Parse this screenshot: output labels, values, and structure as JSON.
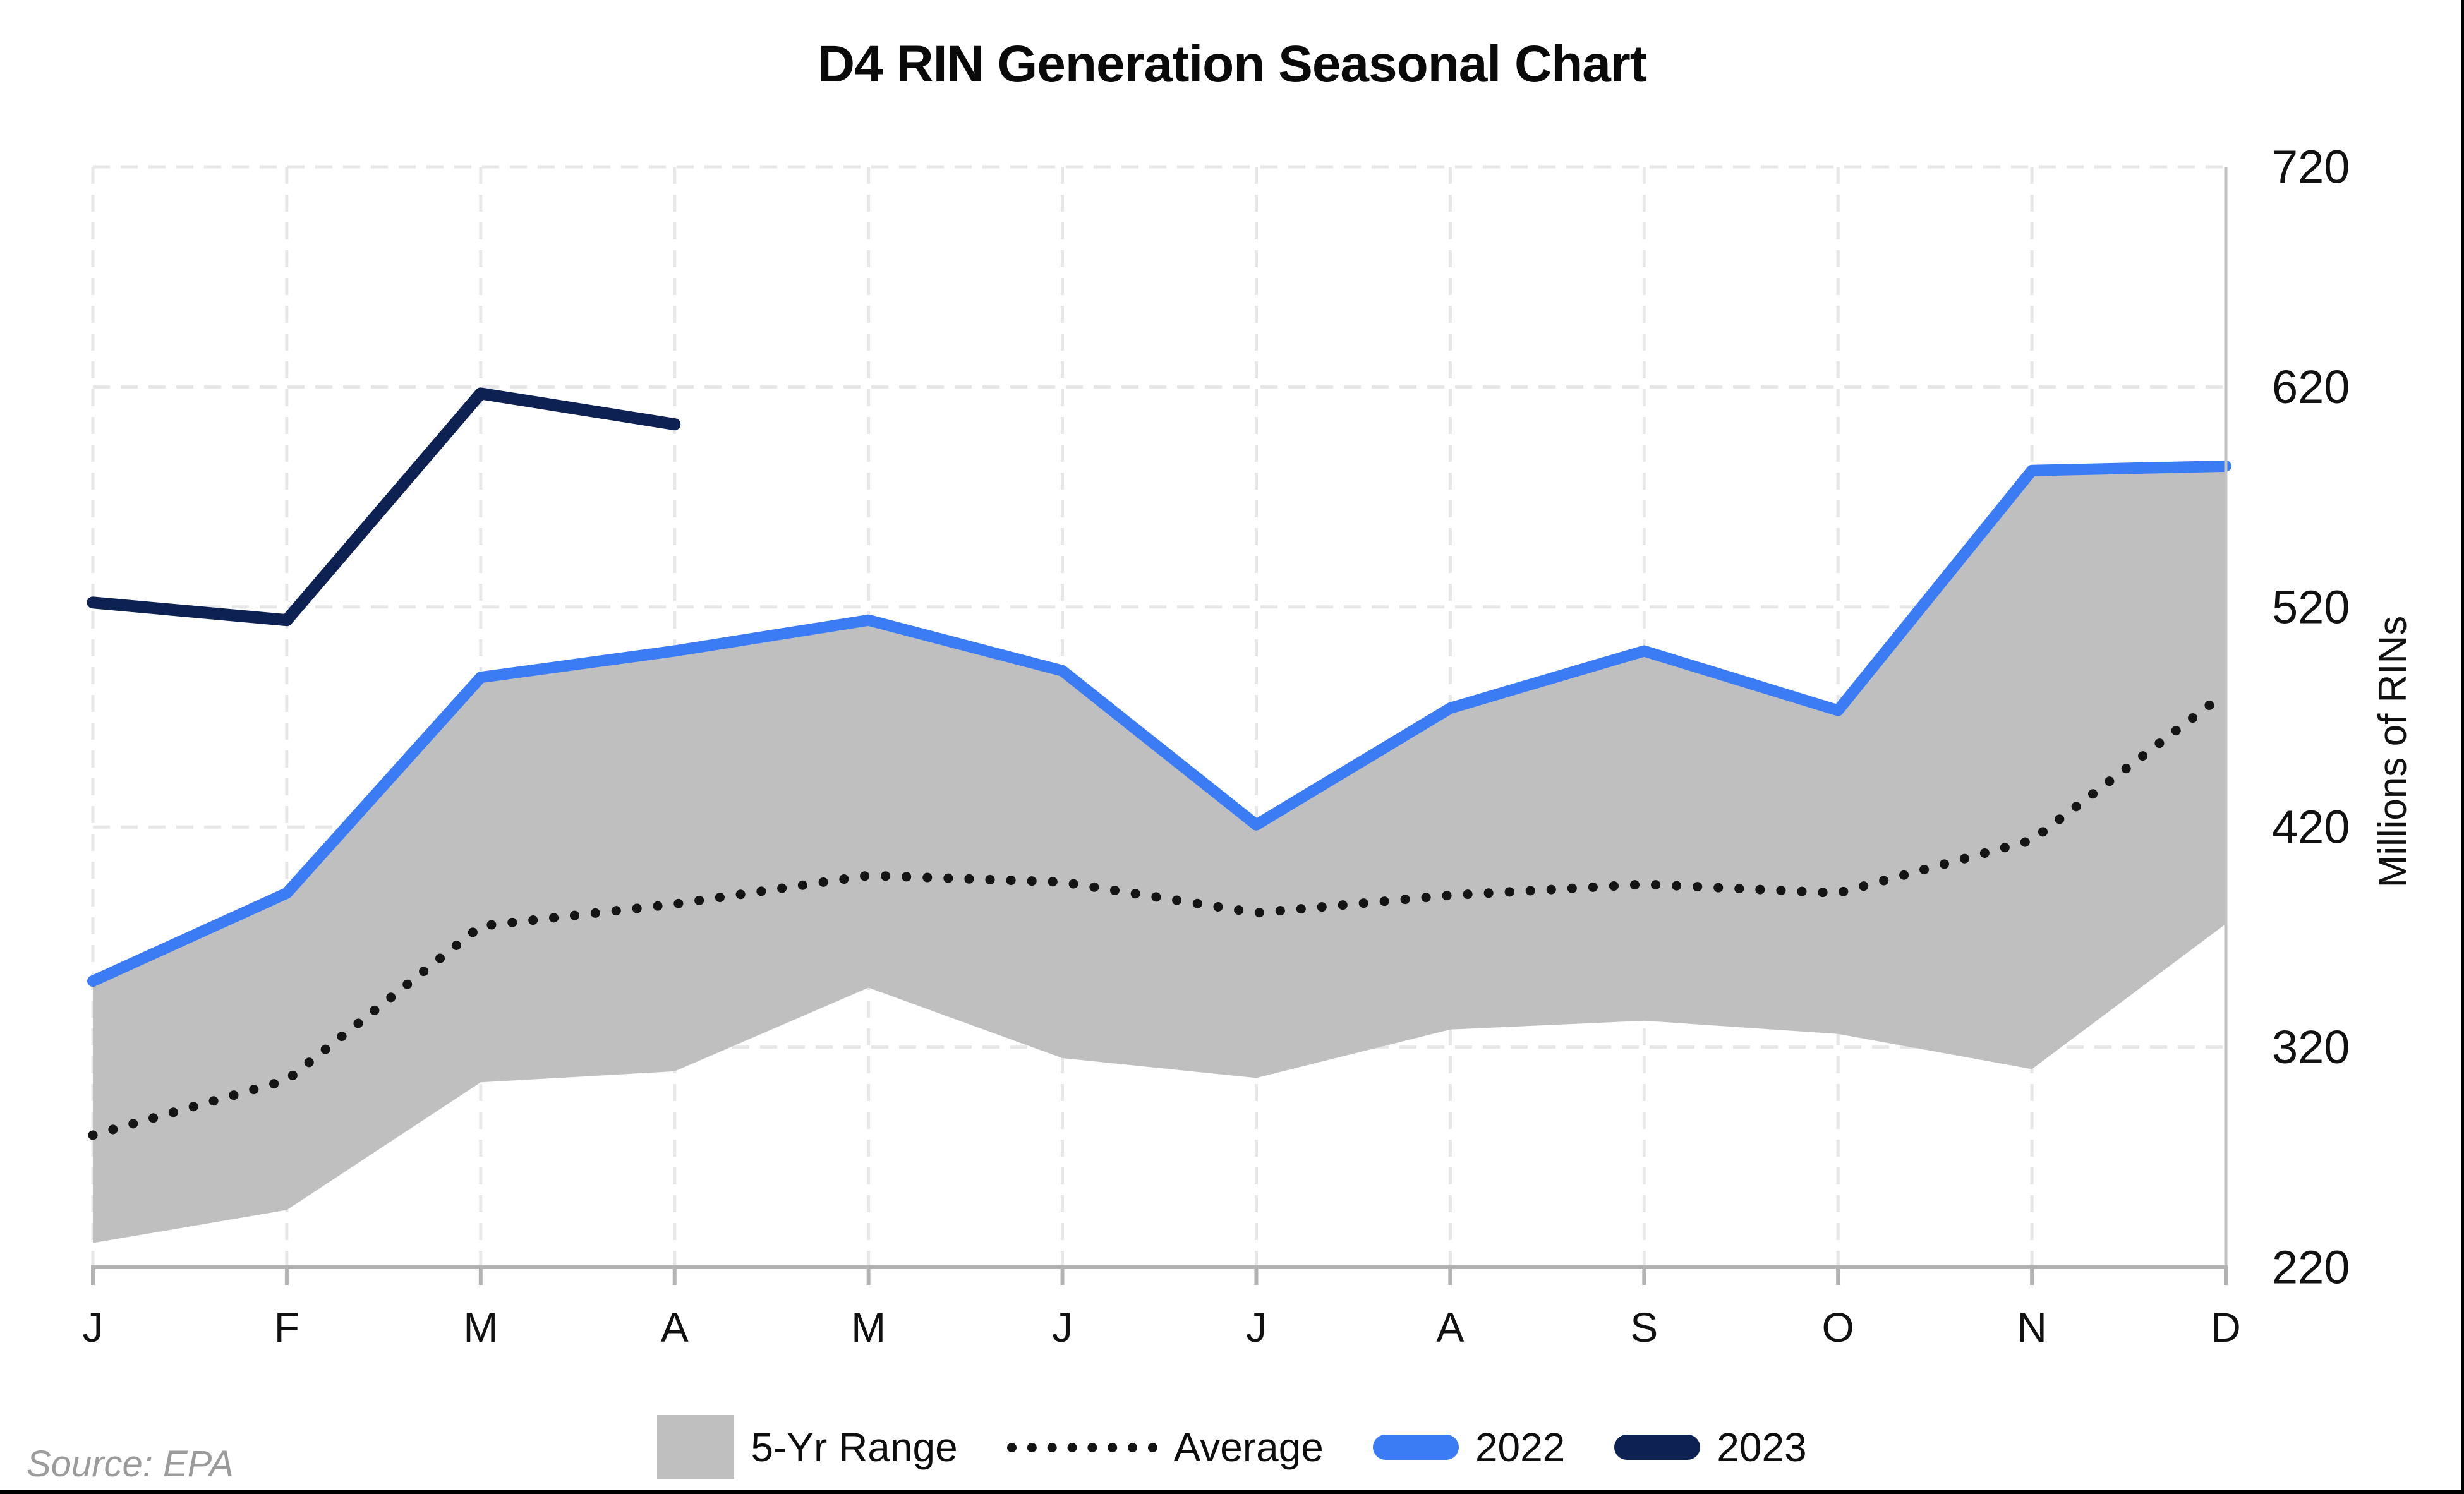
{
  "title": "D4 RIN Generation Seasonal Chart",
  "source_note": "Source: EPA",
  "colors": {
    "band_gray": "#bfbfbf",
    "average_black": "#141414",
    "blue_2022": "#3b7cf4",
    "navy_2023": "#0d2152",
    "gridline": "#e7e7e7",
    "axis": "#b3b3b3",
    "spine": "#c2c2c2",
    "tick_text": "#111111"
  },
  "chart_data": {
    "type": "line",
    "title": "D4 RIN Generation Seasonal Chart",
    "categories": [
      "J",
      "F",
      "M",
      "A",
      "M",
      "J",
      "J",
      "A",
      "S",
      "O",
      "N",
      "D"
    ],
    "xlabel": "",
    "ylabel": "Millions of RINs",
    "ylim": [
      220,
      720
    ],
    "yticks": [
      220,
      320,
      420,
      520,
      620,
      720
    ],
    "grid": true,
    "grid_style": "dashed",
    "legend_position": "bottom",
    "series": [
      {
        "name": "5-Yr Range",
        "type": "band",
        "color": "#bfbfbf",
        "min": [
          231,
          246,
          304,
          309,
          347,
          315,
          306,
          328,
          332,
          326,
          310,
          376
        ],
        "max": [
          350,
          390,
          488,
          500,
          514,
          491,
          421,
          474,
          500,
          473,
          582,
          584
        ]
      },
      {
        "name": "Average",
        "type": "dotted",
        "color": "#141414",
        "values": [
          280,
          305,
          375,
          385,
          398,
          395,
          381,
          389,
          394,
          390,
          414,
          481
        ]
      },
      {
        "name": "2022",
        "type": "line",
        "color": "#3b7cf4",
        "values": [
          350,
          390,
          488,
          500,
          514,
          491,
          421,
          474,
          500,
          473,
          582,
          584
        ]
      },
      {
        "name": "2023",
        "type": "line",
        "color": "#0d2152",
        "values": [
          522,
          514,
          617,
          603,
          null,
          null,
          null,
          null,
          null,
          null,
          null,
          null
        ]
      }
    ]
  }
}
